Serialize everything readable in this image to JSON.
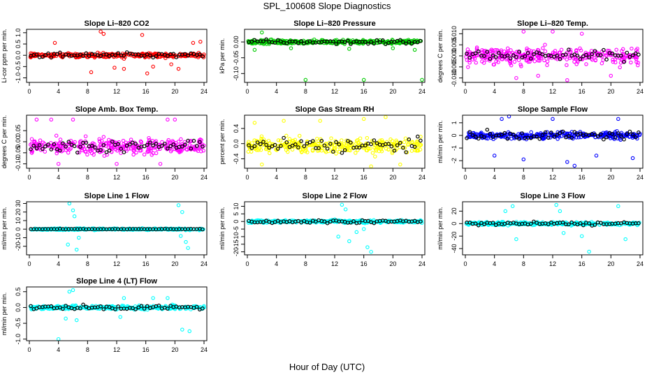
{
  "page": {
    "title": "SPL_100608  Slope Diagnostics",
    "xlabel": "Hour of Day (UTC)"
  },
  "chart_data": [
    {
      "type": "scatter",
      "title": "Slope Li–820 CO2",
      "ylabel": "Li-cor ppm per min.",
      "color": "#ff0000",
      "xlim": [
        0,
        24
      ],
      "x_ticks": [
        0,
        4,
        8,
        12,
        16,
        20,
        24
      ],
      "ylim": [
        -1.2,
        1.15
      ],
      "y_ticks": [
        -1.0,
        -0.5,
        0.0,
        0.5,
        1.0
      ],
      "y_tick_labels": [
        "-1.0",
        "-0.5",
        "0.0",
        "0.5",
        "1.0"
      ],
      "center": 0,
      "spread": 0.13,
      "black_spread": 0.15,
      "outliers": [
        [
          9.8,
          1.05
        ],
        [
          10.2,
          0.95
        ],
        [
          15.5,
          0.9
        ],
        [
          8.5,
          -0.75
        ],
        [
          13,
          -0.6
        ],
        [
          16.2,
          -0.8
        ],
        [
          17,
          -0.5
        ],
        [
          11.7,
          -0.55
        ],
        [
          20.5,
          -0.6
        ],
        [
          22.5,
          0.55
        ],
        [
          23.5,
          0.6
        ],
        [
          3.5,
          0.55
        ],
        [
          19.5,
          -0.4
        ]
      ]
    },
    {
      "type": "scatter",
      "title": "Slope Li–820 Pressure",
      "ylabel": "kPa per min.",
      "color": "#00cc00",
      "xlim": [
        0,
        24
      ],
      "x_ticks": [
        0,
        4,
        8,
        12,
        16,
        20,
        24
      ],
      "ylim": [
        -0.128,
        0.04
      ],
      "y_ticks": [
        -0.1,
        -0.05,
        0.0
      ],
      "y_tick_labels": [
        "-0.10",
        "-0.05",
        "0.00"
      ],
      "center": 0,
      "spread": 0.008,
      "black_spread": 0.009,
      "outliers": [
        [
          8,
          -0.12
        ],
        [
          16,
          -0.12
        ],
        [
          24,
          -0.12
        ],
        [
          1,
          -0.025
        ],
        [
          2,
          0.03
        ],
        [
          20,
          -0.02
        ],
        [
          23,
          -0.025
        ],
        [
          6,
          -0.02
        ],
        [
          14,
          -0.022
        ]
      ]
    },
    {
      "type": "scatter",
      "title": "Slope Li–820 Temp.",
      "ylabel": "degrees C per min.",
      "color": "#ff00ff",
      "xlim": [
        0,
        24
      ],
      "x_ticks": [
        0,
        4,
        8,
        12,
        16,
        20,
        24
      ],
      "ylim": [
        -0.012,
        0.012
      ],
      "y_ticks": [
        -0.01,
        -0.005,
        0.0,
        0.005,
        0.01
      ],
      "y_tick_labels": [
        "-0.010",
        "-0.005",
        "0.000",
        "0.005",
        "0.010"
      ],
      "center": 0,
      "spread": 0.0045,
      "black_spread": 0.003,
      "outliers": [
        [
          8,
          0.011
        ],
        [
          12,
          0.011
        ],
        [
          14,
          -0.011
        ],
        [
          7,
          -0.01
        ],
        [
          10,
          -0.009
        ],
        [
          20,
          -0.009
        ],
        [
          16,
          0.01
        ]
      ]
    },
    {
      "type": "scatter",
      "title": "Slope Amb. Box Temp.",
      "ylabel": "degrees C per min.",
      "color": "#ff00ff",
      "xlim": [
        0,
        24
      ],
      "x_ticks": [
        0,
        4,
        8,
        12,
        16,
        20,
        24
      ],
      "ylim": [
        -0.12,
        0.12
      ],
      "y_ticks": [
        -0.1,
        -0.05,
        0.0,
        0.05
      ],
      "y_tick_labels": [
        "-0.10",
        "-0.05",
        "0.00",
        "0.05"
      ],
      "center": -0.02,
      "spread": 0.045,
      "black_spread": 0.035,
      "outliers": [
        [
          1,
          0.1
        ],
        [
          3,
          0.1
        ],
        [
          6,
          0.1
        ],
        [
          19,
          0.1
        ],
        [
          20,
          0.1
        ],
        [
          4,
          -0.1
        ],
        [
          12,
          -0.1
        ],
        [
          18,
          -0.1
        ]
      ]
    },
    {
      "type": "scatter",
      "title": "Slope Gas Stream RH",
      "ylabel": "percent per min.",
      "color": "#ffff00",
      "xlim": [
        0,
        24
      ],
      "x_ticks": [
        0,
        4,
        8,
        12,
        16,
        20,
        24
      ],
      "ylim": [
        -0.65,
        0.75
      ],
      "y_ticks": [
        -0.4,
        0.0,
        0.4
      ],
      "y_tick_labels": [
        "-0.4",
        "0.0",
        "0.4"
      ],
      "center": -0.05,
      "spread": 0.25,
      "black_spread": 0.25,
      "outliers": [
        [
          1,
          0.55
        ],
        [
          5,
          0.6
        ],
        [
          10,
          0.6
        ],
        [
          16,
          0.65
        ],
        [
          19,
          0.7
        ],
        [
          2,
          -0.55
        ],
        [
          17,
          -0.6
        ],
        [
          21,
          -0.55
        ]
      ]
    },
    {
      "type": "scatter",
      "title": "Slope Sample Flow",
      "ylabel": "ml/min per min.",
      "color": "#0000ff",
      "xlim": [
        0,
        24
      ],
      "x_ticks": [
        0,
        4,
        8,
        12,
        16,
        20,
        24
      ],
      "ylim": [
        -2.6,
        1.6
      ],
      "y_ticks": [
        -2,
        -1,
        0,
        1
      ],
      "y_tick_labels": [
        "-2",
        "-1",
        "0",
        "1"
      ],
      "center": 0,
      "spread": 0.35,
      "black_spread": 0.45,
      "outliers": [
        [
          5,
          1.3
        ],
        [
          6,
          1.5
        ],
        [
          12,
          1.3
        ],
        [
          21,
          1.3
        ],
        [
          4,
          -1.6
        ],
        [
          8,
          -1.9
        ],
        [
          14,
          -2.1
        ],
        [
          18,
          -1.6
        ],
        [
          23,
          -1.8
        ],
        [
          15,
          -2.4
        ]
      ]
    },
    {
      "type": "scatter",
      "title": "Slope Line 1 Flow",
      "ylabel": "ml/min per min.",
      "color": "#00ffff",
      "xlim": [
        0,
        24
      ],
      "x_ticks": [
        0,
        4,
        8,
        12,
        16,
        20,
        24
      ],
      "ylim": [
        -30,
        32
      ],
      "y_ticks": [
        -20,
        -10,
        0,
        10,
        20,
        30
      ],
      "y_tick_labels": [
        "-20",
        "-10",
        "0",
        "10",
        "20",
        "30"
      ],
      "center": 0,
      "spread": 1.3,
      "black_spread": 0.4,
      "outliers": [
        [
          5.5,
          30
        ],
        [
          6,
          22
        ],
        [
          6.2,
          15
        ],
        [
          5.3,
          -18
        ],
        [
          6.5,
          -24
        ],
        [
          6.8,
          -10
        ],
        [
          20.5,
          28
        ],
        [
          21,
          20
        ],
        [
          21.5,
          -15
        ],
        [
          21.8,
          -22
        ],
        [
          20.8,
          -8
        ]
      ]
    },
    {
      "type": "scatter",
      "title": "Slope Line 2 Flow",
      "ylabel": "ml/min per min.",
      "color": "#00ffff",
      "xlim": [
        0,
        24
      ],
      "x_ticks": [
        0,
        4,
        8,
        12,
        16,
        20,
        24
      ],
      "ylim": [
        -22,
        13
      ],
      "y_ticks": [
        -20,
        -15,
        -10,
        -5,
        0,
        5,
        10
      ],
      "y_tick_labels": [
        "-20",
        "-15",
        "-10",
        "-5",
        "0",
        "5",
        "10"
      ],
      "center": 0,
      "spread": 1.1,
      "black_spread": 1.4,
      "outliers": [
        [
          13,
          11
        ],
        [
          13.5,
          8
        ],
        [
          12.5,
          -10
        ],
        [
          14,
          -13
        ],
        [
          15,
          -7
        ],
        [
          16.5,
          -17
        ],
        [
          17,
          -20
        ],
        [
          16,
          -5
        ]
      ]
    },
    {
      "type": "scatter",
      "title": "Slope Line 3 Flow",
      "ylabel": "ml/min per min.",
      "color": "#00ffff",
      "xlim": [
        0,
        24
      ],
      "x_ticks": [
        0,
        4,
        8,
        12,
        16,
        20,
        24
      ],
      "ylim": [
        -50,
        35
      ],
      "y_ticks": [
        -40,
        -20,
        0,
        20
      ],
      "y_tick_labels": [
        "-40",
        "-20",
        "0",
        "20"
      ],
      "center": 0,
      "spread": 3,
      "black_spread": 4,
      "outliers": [
        [
          5.5,
          20
        ],
        [
          6.5,
          28
        ],
        [
          7,
          -25
        ],
        [
          12.5,
          30
        ],
        [
          13,
          20
        ],
        [
          16,
          -20
        ],
        [
          17,
          -45
        ],
        [
          21,
          28
        ],
        [
          22,
          -25
        ],
        [
          13.5,
          -15
        ]
      ]
    },
    {
      "type": "scatter",
      "title": "Slope Line 4 (LT) Flow",
      "ylabel": "ml/min per min.",
      "color": "#00ffff",
      "xlim": [
        0,
        24
      ],
      "x_ticks": [
        0,
        4,
        8,
        12,
        16,
        20,
        24
      ],
      "ylim": [
        -1.05,
        0.65
      ],
      "y_ticks": [
        -1.0,
        -0.5,
        0.0,
        0.5
      ],
      "y_tick_labels": [
        "-1.0",
        "-0.5",
        "0.0",
        "0.5"
      ],
      "center": 0,
      "spread": 0.07,
      "black_spread": 0.09,
      "outliers": [
        [
          4,
          -1.0
        ],
        [
          5.5,
          0.5
        ],
        [
          6,
          0.55
        ],
        [
          6.5,
          -0.4
        ],
        [
          12.5,
          -0.3
        ],
        [
          13,
          0.3
        ],
        [
          17,
          0.3
        ],
        [
          19,
          0.3
        ],
        [
          21,
          -0.7
        ],
        [
          22,
          -0.75
        ],
        [
          5,
          -0.35
        ]
      ]
    }
  ]
}
